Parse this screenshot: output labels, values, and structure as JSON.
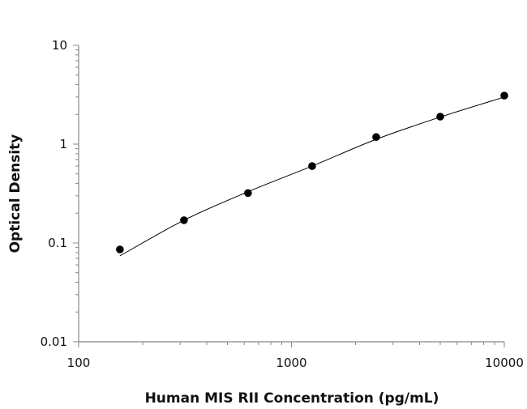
{
  "chart_data": {
    "type": "scatter",
    "title": "",
    "xlabel": "Human MIS RII Concentration (pg/mL)",
    "ylabel": "Optical Density",
    "x_scale": "log",
    "y_scale": "log",
    "xlim": [
      100,
      10000
    ],
    "ylim": [
      0.01,
      10
    ],
    "x_ticks": [
      "100",
      "1000",
      "10000"
    ],
    "y_ticks": [
      "0.01",
      "0.1",
      "1",
      "10"
    ],
    "grid": false,
    "legend": "none",
    "series": [
      {
        "x": [
          156.25,
          312.5,
          625,
          1250,
          2500,
          5000,
          10000
        ],
        "y": [
          0.086,
          0.17,
          0.32,
          0.6,
          1.18,
          1.9,
          3.1
        ],
        "marker": "filled-circle",
        "color": "#000000"
      }
    ],
    "fit_curve": {
      "x": [
        156.25,
        312.5,
        625,
        1250,
        2500,
        5000,
        10000
      ],
      "y": [
        0.074,
        0.17,
        0.33,
        0.6,
        1.12,
        1.88,
        3.0
      ],
      "color": "#000000"
    }
  }
}
